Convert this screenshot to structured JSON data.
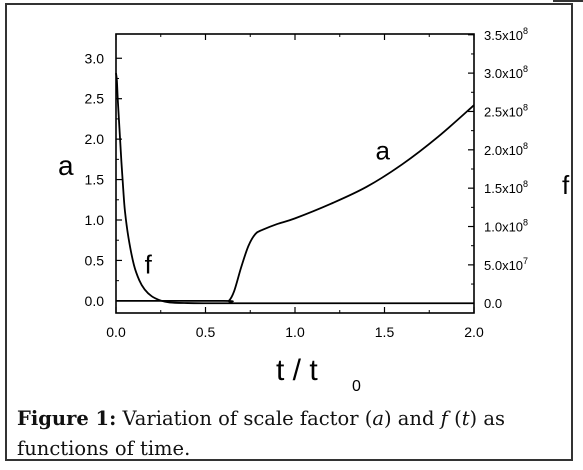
{
  "chart_data": {
    "type": "line",
    "x_label_main": "t / t",
    "x_label_sub": "0",
    "y_left_label": "a",
    "y_right_label": "f",
    "xlim": [
      0.0,
      2.0
    ],
    "ylim_left": [
      -0.15,
      3.3
    ],
    "ylim_right": [
      -12750000.0,
      351000000.0
    ],
    "x_ticks": [
      "0.0",
      "0.5",
      "1.0",
      "1.5",
      "2.0"
    ],
    "y_left_ticks": [
      "0.0",
      "0.5",
      "1.0",
      "1.5",
      "2.0",
      "2.5",
      "3.0"
    ],
    "y_right_ticks": [
      {
        "base": "0.0",
        "exp": ""
      },
      {
        "base": "5.0x10",
        "exp": "7"
      },
      {
        "base": "1.0x10",
        "exp": "8"
      },
      {
        "base": "1.5x10",
        "exp": "8"
      },
      {
        "base": "2.0x10",
        "exp": "8"
      },
      {
        "base": "2.5x10",
        "exp": "8"
      },
      {
        "base": "3.0x10",
        "exp": "8"
      },
      {
        "base": "3.5x10",
        "exp": "8"
      }
    ],
    "series": [
      {
        "name": "a",
        "axis": "left",
        "x": [
          0.0,
          0.6,
          0.63,
          0.66,
          0.7,
          0.74,
          0.78,
          0.82,
          0.9,
          1.0,
          1.2,
          1.4,
          1.6,
          1.8,
          2.0
        ],
        "y": [
          0.0,
          0.0,
          0.0,
          0.12,
          0.42,
          0.68,
          0.83,
          0.88,
          0.95,
          1.02,
          1.2,
          1.41,
          1.69,
          2.03,
          2.42
        ]
      },
      {
        "name": "f",
        "axis": "right",
        "x": [
          0.0,
          0.005,
          0.01,
          0.02,
          0.03,
          0.04,
          0.05,
          0.07,
          0.1,
          0.13,
          0.16,
          0.2,
          0.25,
          0.3,
          0.4,
          0.5,
          0.6,
          0.63,
          2.0
        ],
        "y": [
          300000000.0,
          290000000.0,
          265000000.0,
          225000000.0,
          185000000.0,
          150000000.0,
          120000000.0,
          85000000.0,
          50000000.0,
          30000000.0,
          18000000.0,
          9000000.0,
          3500000.0,
          1000000.0,
          200000.0,
          0.0,
          0.0,
          0.0,
          0.0
        ]
      }
    ],
    "annotations": [
      {
        "text": "a",
        "x": 1.45,
        "y": 1.75,
        "axis": "left"
      },
      {
        "text": "f",
        "x": 0.16,
        "y": 0.34,
        "axis": "left"
      }
    ]
  },
  "caption": {
    "label": "Figure 1:",
    "text_1": " Variation of scale factor (",
    "var_a": "a",
    "text_2": ") and ",
    "var_f": "f",
    "text_3": " (",
    "var_t": "t",
    "text_4": ") as functions of time."
  }
}
